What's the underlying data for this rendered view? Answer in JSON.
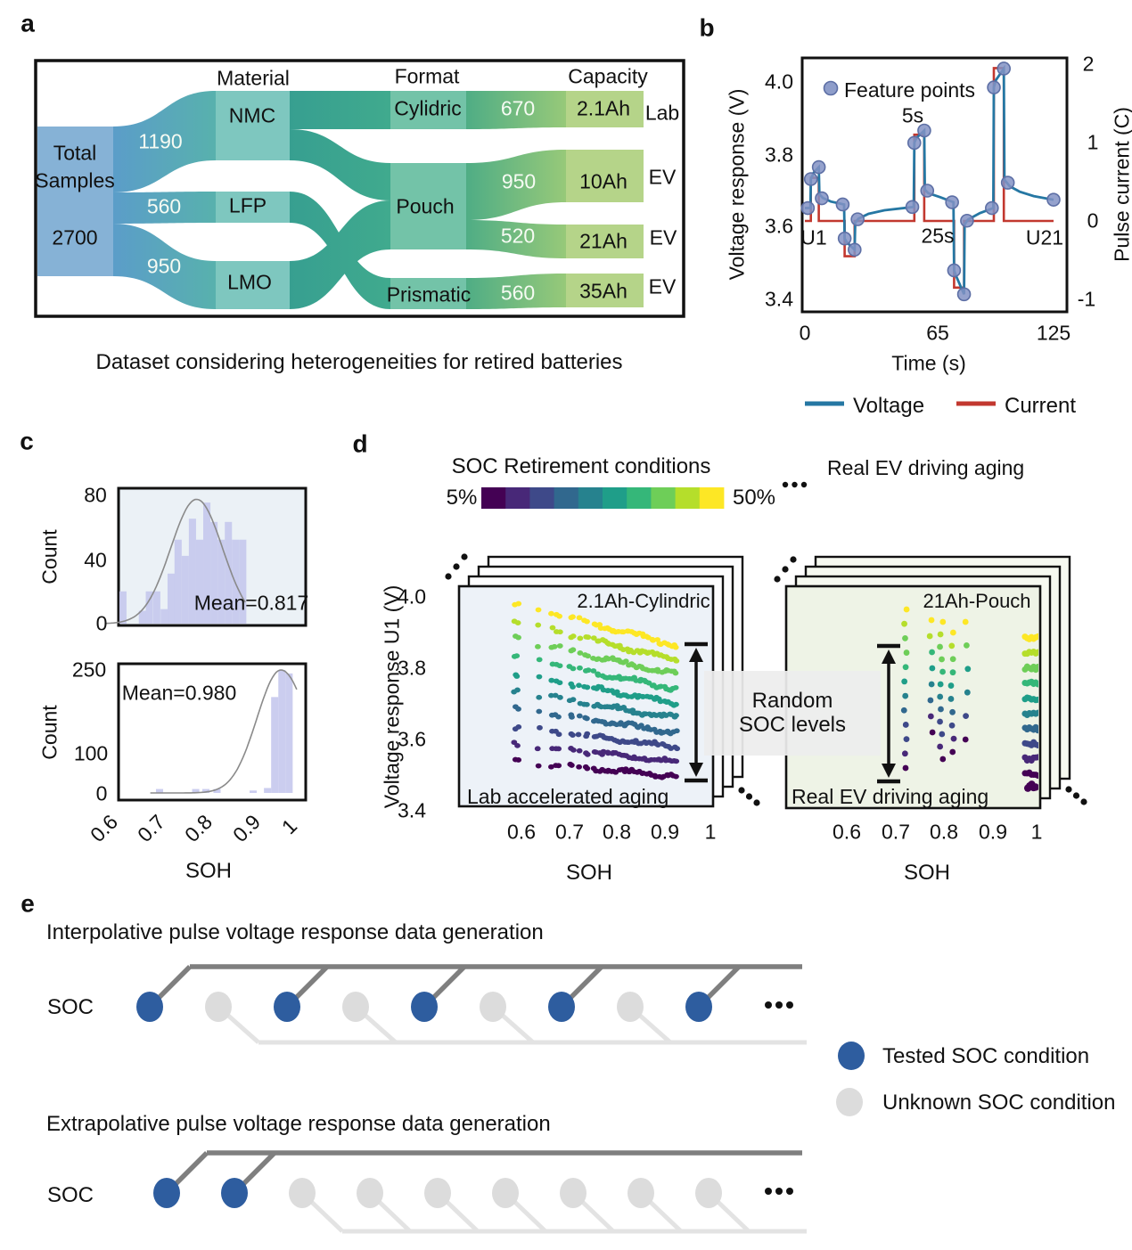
{
  "panel_a": {
    "letter": "a",
    "headers": [
      "Material",
      "Format",
      "Capacity"
    ],
    "total": {
      "line1": "Total",
      "line2": "Samples",
      "value": "2700"
    },
    "material_flows": [
      "1190",
      "560",
      "950"
    ],
    "materials": [
      "NMC",
      "LFP",
      "LMO"
    ],
    "formats": [
      "Cylidric",
      "Pouch",
      "Prismatic"
    ],
    "capacity_flows": [
      "670",
      "950",
      "520",
      "560"
    ],
    "capacities": [
      "2.1Ah",
      "10Ah",
      "21Ah",
      "35Ah"
    ],
    "sources": [
      "Lab",
      "EV",
      "EV",
      "EV"
    ],
    "caption": "Dataset considering heterogeneities for retired batteries",
    "colors": {
      "total_node": "#86b2d6",
      "material_node": "#7ec7bf",
      "format_node": "#73c3a8",
      "capacity_node": "#b5d489"
    }
  },
  "panel_b": {
    "letter": "b",
    "ylabel_left": "Voltage response (V)",
    "ylabel_right": "Pulse current (C)",
    "xlabel": "Time (s)",
    "yticks_left": [
      "4.0",
      "3.8",
      "3.6",
      "3.4"
    ],
    "yticks_right": [
      "2",
      "1",
      "0",
      "-1"
    ],
    "xticks": [
      "0",
      "65",
      "125"
    ],
    "feature_label": "Feature points",
    "ann_5s": "5s",
    "ann_25s": "25s",
    "ann_u1": "U1",
    "ann_u21": "U21",
    "legend": [
      "Voltage",
      "Current"
    ],
    "colors": {
      "voltage": "#2577a3",
      "current": "#c2382f",
      "feature": "#8292c4",
      "feature_edge": "#5d6fa5"
    }
  },
  "panel_c": {
    "letter": "c",
    "ylabel": "Count",
    "xlabel": "SOH",
    "xticks": [
      "0.6",
      "0.7",
      "0.8",
      "0.9",
      "1"
    ],
    "top": {
      "yticks": [
        "80",
        "40",
        "0"
      ],
      "mean": "Mean=0.817"
    },
    "bottom": {
      "yticks": [
        "250",
        "100",
        "0"
      ],
      "mean": "Mean=0.980"
    },
    "bar_color": "#c5c8ed",
    "curve_color": "#8a8a8a",
    "bg_top": "#ebf1f6"
  },
  "panel_d": {
    "letter": "d",
    "cb_title": "SOC Retirement conditions",
    "cb_min": "5%",
    "cb_max": "50%",
    "right_note": "Real EV driving aging",
    "ylabel": "Voltage response U1 (V)",
    "yticks": [
      "4.0",
      "3.8",
      "3.6",
      "3.4"
    ],
    "xticks": [
      "0.6",
      "0.7",
      "0.8",
      "0.9",
      "1"
    ],
    "xlabel_left": "SOH",
    "xlabel_right": "SOH",
    "left_title": "2.1Ah-Cylindric",
    "left_note": "Lab accelerated aging",
    "right_title": "21Ah-Pouch",
    "box_label": "Random\nSOC levels",
    "colormap": [
      "#440154",
      "#482878",
      "#3e4989",
      "#31688e",
      "#26828e",
      "#1f9e89",
      "#35b779",
      "#6ece58",
      "#b5de2b",
      "#fde725"
    ]
  },
  "panel_e": {
    "letter": "e",
    "row1_title": "Interpolative pulse voltage response data generation",
    "row2_title": "Extrapolative pulse voltage response data generation",
    "soc_label_row1": "SOC",
    "soc_label_row2": "SOC",
    "row1_pattern": [
      "T",
      "U",
      "T",
      "U",
      "T",
      "U",
      "T",
      "U",
      "T"
    ],
    "row2_pattern": [
      "T",
      "T",
      "U",
      "U",
      "U",
      "U",
      "U",
      "U",
      "U"
    ],
    "legend": [
      {
        "label": "Tested SOC condition",
        "color": "#2e5d9f"
      },
      {
        "label": "Unknown SOC condition",
        "color": "#dcdcdc"
      }
    ],
    "line_dark": "#7f7f7f",
    "line_light": "#e3e3e3"
  },
  "chart_data": [
    {
      "id": "retired-battery-sankey",
      "type": "sankey",
      "title": "Dataset considering heterogeneities for retired batteries",
      "total": {
        "label": "Total Samples",
        "value": 2700
      },
      "levels": [
        "Material",
        "Format",
        "Capacity"
      ],
      "links": [
        {
          "from": "Total Samples",
          "to": "NMC",
          "value": 1190
        },
        {
          "from": "Total Samples",
          "to": "LFP",
          "value": 560
        },
        {
          "from": "Total Samples",
          "to": "LMO",
          "value": 950
        },
        {
          "from": "NMC",
          "to": "Cylidric",
          "value": 670
        },
        {
          "from": "NMC",
          "to": "Pouch",
          "value": 520
        },
        {
          "from": "LFP",
          "to": "Prismatic",
          "value": 560
        },
        {
          "from": "LMO",
          "to": "Pouch",
          "value": 950
        },
        {
          "from": "Cylidric",
          "to": "2.1Ah",
          "value": 670,
          "source_type": "Lab"
        },
        {
          "from": "Pouch",
          "to": "10Ah",
          "value": 950,
          "source_type": "EV"
        },
        {
          "from": "Pouch",
          "to": "21Ah",
          "value": 520,
          "source_type": "EV"
        },
        {
          "from": "Prismatic",
          "to": "35Ah",
          "value": 560,
          "source_type": "EV"
        }
      ]
    },
    {
      "id": "pulse-profile",
      "type": "line",
      "xlabel": "Time (s)",
      "ylabel_left": "Voltage response (V)",
      "ylabel_right": "Pulse current (C)",
      "x_ticks": [
        0,
        65,
        125
      ],
      "ylim_left": [
        3.4,
        4.05
      ],
      "ylim_right": [
        -1,
        2
      ],
      "voltage": [
        [
          0,
          3.652
        ],
        [
          2.8,
          3.652
        ],
        [
          3,
          3.732
        ],
        [
          4.5,
          3.75
        ],
        [
          7,
          3.765
        ],
        [
          7.3,
          3.69
        ],
        [
          9,
          3.68
        ],
        [
          13,
          3.67
        ],
        [
          19.7,
          3.662
        ],
        [
          20,
          3.568
        ],
        [
          21,
          3.558
        ],
        [
          25,
          3.537
        ],
        [
          25.3,
          3.612
        ],
        [
          27,
          3.623
        ],
        [
          32,
          3.636
        ],
        [
          40,
          3.646
        ],
        [
          54.7,
          3.655
        ],
        [
          55,
          3.832
        ],
        [
          56,
          3.845
        ],
        [
          60,
          3.866
        ],
        [
          60.3,
          3.703
        ],
        [
          62,
          3.693
        ],
        [
          68,
          3.682
        ],
        [
          74.7,
          3.668
        ],
        [
          75,
          3.48
        ],
        [
          76,
          3.465
        ],
        [
          80,
          3.414
        ],
        [
          80.3,
          3.607
        ],
        [
          82,
          3.62
        ],
        [
          88,
          3.638
        ],
        [
          94.7,
          3.652
        ],
        [
          95,
          3.985
        ],
        [
          96,
          4.005
        ],
        [
          100,
          4.037
        ],
        [
          100.3,
          3.73
        ],
        [
          103,
          3.712
        ],
        [
          108,
          3.697
        ],
        [
          115,
          3.685
        ],
        [
          125,
          3.675
        ]
      ],
      "current": [
        [
          0,
          0
        ],
        [
          3,
          0
        ],
        [
          3,
          0.55
        ],
        [
          7,
          0.55
        ],
        [
          7,
          0
        ],
        [
          20,
          0
        ],
        [
          20,
          -0.45
        ],
        [
          25,
          -0.45
        ],
        [
          25,
          0
        ],
        [
          55,
          0
        ],
        [
          55,
          1.1
        ],
        [
          60,
          1.1
        ],
        [
          60,
          0
        ],
        [
          75,
          0
        ],
        [
          75,
          -0.85
        ],
        [
          80,
          -0.85
        ],
        [
          80,
          0
        ],
        [
          95,
          0
        ],
        [
          95,
          1.95
        ],
        [
          100,
          1.95
        ],
        [
          100,
          0
        ],
        [
          125,
          0
        ]
      ],
      "feature_points": [
        [
          1.5,
          3.652
        ],
        [
          3,
          3.732
        ],
        [
          7,
          3.765
        ],
        [
          8.5,
          3.679
        ],
        [
          19,
          3.662
        ],
        [
          20,
          3.568
        ],
        [
          25,
          3.537
        ],
        [
          26.5,
          3.621
        ],
        [
          54,
          3.655
        ],
        [
          55,
          3.832
        ],
        [
          60,
          3.866
        ],
        [
          61.5,
          3.7
        ],
        [
          74,
          3.668
        ],
        [
          75,
          3.48
        ],
        [
          80,
          3.414
        ],
        [
          81.5,
          3.617
        ],
        [
          94,
          3.652
        ],
        [
          95,
          3.985
        ],
        [
          100,
          4.037
        ],
        [
          102,
          3.722
        ],
        [
          125,
          3.675
        ]
      ]
    },
    {
      "id": "soh-hist-lab",
      "type": "bar",
      "ylabel": "Count",
      "xlabel": "SOH",
      "mean_label": "Mean=0.817",
      "yticks": [
        0,
        40,
        80
      ],
      "bin_width": 0.0155,
      "bars": [
        [
          0.621,
          20
        ],
        [
          0.663,
          8
        ],
        [
          0.678,
          20
        ],
        [
          0.694,
          20
        ],
        [
          0.71,
          9
        ],
        [
          0.725,
          31
        ],
        [
          0.74,
          52
        ],
        [
          0.7555,
          42
        ],
        [
          0.771,
          65
        ],
        [
          0.7865,
          52
        ],
        [
          0.802,
          75
        ],
        [
          0.8175,
          63
        ],
        [
          0.833,
          52
        ],
        [
          0.8485,
          63
        ],
        [
          0.864,
          52
        ],
        [
          0.8795,
          52
        ]
      ],
      "curve": {
        "mean": 0.78,
        "sigma": 0.056,
        "peak": 77,
        "from": 0.585,
        "to": 0.888
      }
    },
    {
      "id": "soh-hist-ev",
      "type": "bar",
      "ylabel": "Count",
      "xlabel": "SOH",
      "mean_label": "Mean=0.980",
      "yticks": [
        0,
        100,
        250
      ],
      "bin_width": 0.0155,
      "bars": [
        [
          0.7,
          8
        ],
        [
          0.778,
          8
        ],
        [
          0.8,
          8
        ],
        [
          0.824,
          8
        ],
        [
          0.902,
          5
        ],
        [
          0.933,
          10
        ],
        [
          0.9485,
          195
        ],
        [
          0.964,
          250
        ],
        [
          0.9795,
          243
        ]
      ],
      "curve": {
        "mean": 0.962,
        "sigma_left": 0.052,
        "sigma_right": 0.058,
        "peak": 250,
        "from": 0.68,
        "to": 1.0
      }
    },
    {
      "id": "scatter-lab-aging",
      "type": "scatter",
      "title": "2.1Ah-Cylindric",
      "note": "Lab accelerated aging",
      "xlabel": "SOH",
      "ylabel": "Voltage response U1 (V)",
      "xlim": [
        0.55,
        1.0
      ],
      "ylim": [
        3.4,
        4.0
      ],
      "soc_range": [
        "5%",
        "50%"
      ],
      "series_count": 10,
      "v_left_base": 3.538,
      "v_left_step": 0.0493,
      "v_right_base": 3.497,
      "v_right_step": 0.0405,
      "x_sparse": [
        0.586,
        0.592,
        0.636,
        0.664,
        0.671,
        0.679,
        0.702,
        0.707,
        0.721,
        0.733,
        0.738
      ],
      "x_dense": {
        "from": 0.752,
        "to": 0.928,
        "step": 0.0052
      }
    },
    {
      "id": "scatter-ev-aging",
      "type": "scatter",
      "title": "21Ah-Pouch",
      "note": "Real EV driving aging",
      "xlabel": "SOH",
      "ylabel": "Voltage response U1 (V)",
      "xlim": [
        0.55,
        1.0
      ],
      "ylim": [
        3.4,
        4.0
      ],
      "columns": [
        {
          "soh": 0.722,
          "n": 12,
          "v_min": 3.52,
          "v_max": 3.965
        },
        {
          "soh": 0.777,
          "n": 8,
          "v_min": 3.62,
          "v_max": 3.935
        },
        {
          "soh": 0.798,
          "n": 12,
          "v_min": 3.545,
          "v_max": 3.93
        },
        {
          "soh": 0.821,
          "n": 10,
          "v_min": 3.565,
          "v_max": 3.9
        },
        {
          "soh": 0.85,
          "n": 6,
          "v_min": 3.6,
          "v_max": 3.93
        }
      ],
      "cluster": {
        "soh_from": 0.972,
        "soh_step": 0.0045,
        "dots_per_row": 7,
        "rows": 10,
        "v_base": 3.503,
        "v_step": 0.0425
      }
    }
  ]
}
